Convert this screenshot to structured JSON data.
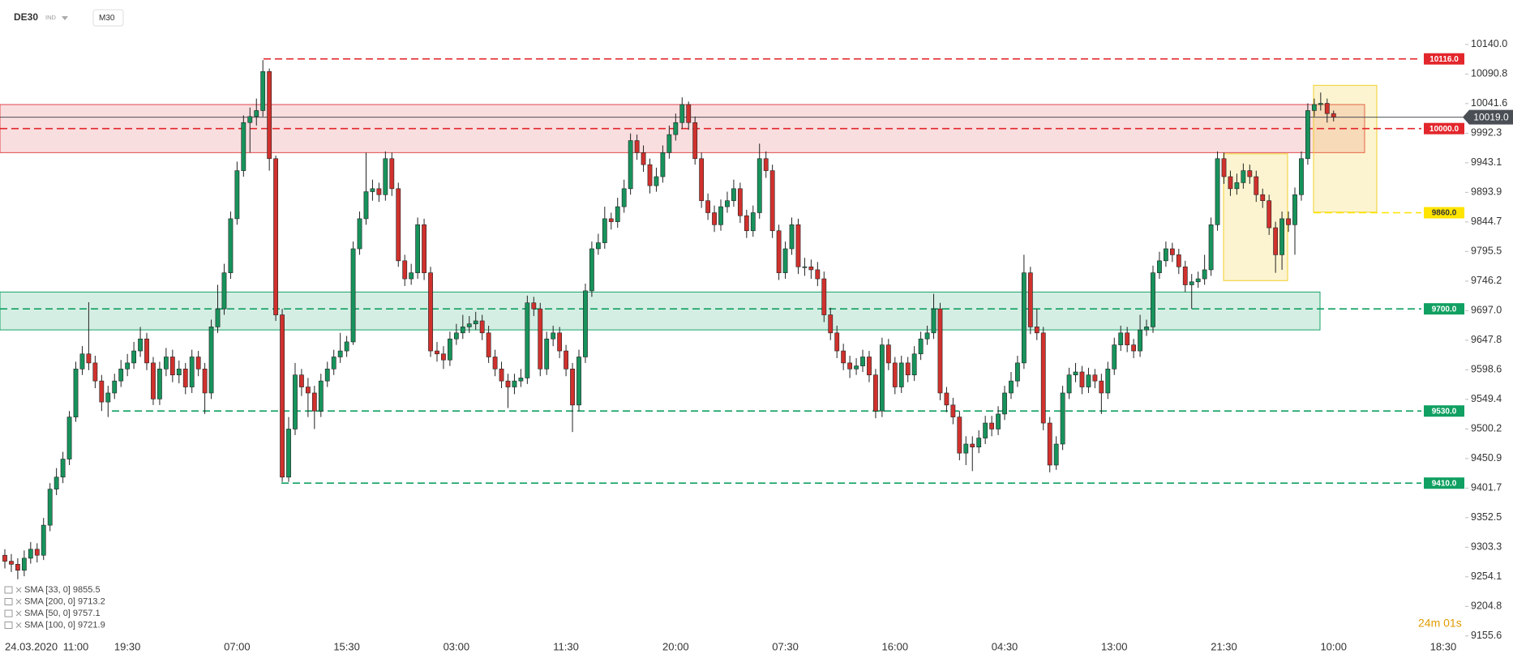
{
  "header": {
    "symbol": "DE30",
    "instrument_type": "IND",
    "timeframe": "M30",
    "countdown": "24m 01s",
    "indicators": [
      "SMA [33, 0] 9855.5",
      "SMA [200, 0] 9713.2",
      "SMA [50, 0] 9757.1",
      "SMA [100, 0] 9721.9"
    ]
  },
  "chart_data": {
    "type": "candlestick",
    "up_color": "#17935c",
    "down_color": "#d0312d",
    "x_date_label": "24.03.2020",
    "categories": [
      null,
      null,
      null,
      null,
      null,
      null,
      null,
      null,
      null,
      null,
      null,
      "11:00",
      null,
      null,
      null,
      null,
      null,
      null,
      null,
      "19:30",
      null,
      null,
      null,
      null,
      null,
      null,
      null,
      null,
      null,
      null,
      null,
      null,
      null,
      null,
      null,
      null,
      "07:00",
      null,
      null,
      null,
      null,
      null,
      null,
      null,
      null,
      null,
      null,
      null,
      null,
      null,
      null,
      null,
      null,
      "15:30",
      null,
      null,
      null,
      null,
      null,
      null,
      null,
      null,
      null,
      null,
      null,
      null,
      null,
      null,
      null,
      null,
      "03:00",
      null,
      null,
      null,
      null,
      null,
      null,
      null,
      null,
      null,
      null,
      null,
      null,
      null,
      null,
      null,
      null,
      "11:30",
      null,
      null,
      null,
      null,
      null,
      null,
      null,
      null,
      null,
      null,
      null,
      null,
      null,
      null,
      null,
      null,
      "20:00",
      null,
      null,
      null,
      null,
      null,
      null,
      null,
      null,
      null,
      null,
      null,
      null,
      null,
      null,
      null,
      null,
      "07:30",
      null,
      null,
      null,
      null,
      null,
      null,
      null,
      null,
      null,
      null,
      null,
      null,
      null,
      null,
      null,
      null,
      "16:00",
      null,
      null,
      null,
      null,
      null,
      null,
      null,
      null,
      null,
      null,
      null,
      null,
      null,
      null,
      null,
      null,
      "04:30",
      null,
      null,
      null,
      null,
      null,
      null,
      null,
      null,
      null,
      null,
      null,
      null,
      null,
      null,
      null,
      null,
      "13:00",
      null,
      null,
      null,
      null,
      null,
      null,
      null,
      null,
      null,
      null,
      null,
      null,
      null,
      null,
      null,
      null,
      "21:30",
      null,
      null,
      null,
      null,
      null,
      null,
      null,
      null,
      null,
      null,
      null,
      null,
      null,
      null,
      null,
      null,
      "10:00",
      null,
      null,
      null,
      null,
      null,
      null,
      null,
      null,
      null,
      null,
      null,
      null,
      null,
      null,
      null,
      null,
      "18:30"
    ],
    "open": [
      9290,
      9280,
      9275,
      9265,
      9285,
      9300,
      9290,
      9340,
      9400,
      9420,
      9450,
      9520,
      9600,
      9625,
      9610,
      9580,
      9545,
      9560,
      9580,
      9600,
      9610,
      9630,
      9650,
      9610,
      9550,
      9600,
      9620,
      9590,
      9600,
      9570,
      9620,
      9600,
      9560,
      9670,
      9700,
      9760,
      9850,
      9930,
      10010,
      10020,
      10030,
      10095,
      9950,
      9690,
      9420,
      9500,
      9590,
      9570,
      9560,
      9530,
      9580,
      9600,
      9620,
      9630,
      9645,
      9800,
      9850,
      9895,
      9900,
      9890,
      9950,
      9900,
      9780,
      9750,
      9760,
      9840,
      9760,
      9630,
      9625,
      9615,
      9650,
      9660,
      9670,
      9675,
      9680,
      9660,
      9620,
      9600,
      9580,
      9570,
      9580,
      9585,
      9710,
      9700,
      9600,
      9650,
      9660,
      9630,
      9600,
      9540,
      9620,
      9730,
      9800,
      9810,
      9850,
      9845,
      9870,
      9900,
      9980,
      9960,
      9940,
      9905,
      9920,
      9960,
      9990,
      10010,
      10040,
      10010,
      9950,
      9880,
      9860,
      9840,
      9870,
      9880,
      9900,
      9855,
      9830,
      9860,
      9950,
      9930,
      9830,
      9760,
      9800,
      9840,
      9770,
      9770,
      9765,
      9750,
      9690,
      9660,
      9630,
      9610,
      9600,
      9605,
      9620,
      9590,
      9530,
      9640,
      9610,
      9570,
      9610,
      9590,
      9625,
      9650,
      9660,
      9700,
      9560,
      9540,
      9520,
      9460,
      9475,
      9470,
      9485,
      9510,
      9500,
      9525,
      9560,
      9580,
      9610,
      9760,
      9670,
      9660,
      9510,
      9440,
      9475,
      9560,
      9590,
      9595,
      9570,
      9590,
      9580,
      9560,
      9600,
      9640,
      9660,
      9640,
      9630,
      9665,
      9670,
      9760,
      9780,
      9800,
      9790,
      9770,
      9740,
      9745,
      9750,
      9765,
      9840,
      9950,
      9920,
      9900,
      9910,
      9930,
      9920,
      9890,
      9880,
      9835,
      9790,
      9850,
      9840,
      9890,
      9950,
      10030,
      10040,
      10042,
      10025,
      null,
      null,
      null,
      null,
      null,
      null,
      null,
      null,
      null,
      null,
      null,
      null,
      null,
      null,
      null,
      null,
      null
    ],
    "high": [
      9300,
      9292,
      9285,
      9298,
      9312,
      9310,
      9352,
      9410,
      9435,
      9462,
      9530,
      9612,
      9638,
      9711,
      9622,
      9590,
      9572,
      9592,
      9615,
      9625,
      9645,
      9670,
      9660,
      9620,
      9612,
      9635,
      9632,
      9614,
      9610,
      9632,
      9630,
      9610,
      9682,
      9740,
      9775,
      9862,
      9945,
      10022,
      10035,
      10050,
      10114,
      10100,
      9955,
      9700,
      9520,
      9610,
      9600,
      9585,
      9572,
      9592,
      9612,
      9632,
      9660,
      9655,
      9812,
      9862,
      9960,
      9915,
      9910,
      9962,
      9960,
      9910,
      9790,
      9775,
      9852,
      9850,
      9770,
      9645,
      9638,
      9662,
      9675,
      9690,
      9688,
      9695,
      9690,
      9672,
      9632,
      9612,
      9592,
      9592,
      9600,
      9722,
      9720,
      9710,
      9662,
      9672,
      9670,
      9640,
      9610,
      9632,
      9742,
      9812,
      9825,
      9870,
      9860,
      9885,
      9915,
      9992,
      9990,
      9972,
      9950,
      9935,
      9972,
      10005,
      10025,
      10052,
      10045,
      10020,
      9960,
      9892,
      9872,
      9882,
      9895,
      9915,
      9910,
      9865,
      9872,
      9975,
      9962,
      9940,
      9840,
      9812,
      9852,
      9850,
      9785,
      9782,
      9778,
      9762,
      9702,
      9672,
      9642,
      9622,
      9618,
      9632,
      9630,
      9600,
      9652,
      9650,
      9620,
      9622,
      9620,
      9638,
      9662,
      9672,
      9725,
      9710,
      9570,
      9552,
      9530,
      9488,
      9488,
      9498,
      9522,
      9522,
      9538,
      9572,
      9595,
      9622,
      9790,
      9770,
      9700,
      9670,
      9520,
      9488,
      9572,
      9602,
      9610,
      9605,
      9602,
      9600,
      9592,
      9612,
      9652,
      9672,
      9670,
      9650,
      9690,
      9682,
      9772,
      9795,
      9812,
      9810,
      9800,
      9780,
      9758,
      9762,
      9790,
      9852,
      9962,
      9960,
      9930,
      9925,
      9942,
      9940,
      9930,
      9900,
      9890,
      9845,
      9862,
      9862,
      9902,
      9962,
      10042,
      10050,
      10060,
      10050,
      10030,
      null,
      null,
      null,
      null,
      null,
      null,
      null,
      null,
      null,
      null,
      null,
      null,
      null,
      null,
      null,
      null,
      null
    ],
    "low": [
      9268,
      9262,
      9250,
      9255,
      9276,
      9278,
      9282,
      9330,
      9390,
      9410,
      9440,
      9512,
      9590,
      9598,
      9568,
      9530,
      9520,
      9550,
      9570,
      9588,
      9600,
      9620,
      9598,
      9540,
      9540,
      9588,
      9578,
      9576,
      9558,
      9560,
      9588,
      9525,
      9550,
      9660,
      9690,
      9750,
      9840,
      9920,
      9960,
      10005,
      10020,
      9930,
      9680,
      9412,
      9412,
      9490,
      9555,
      9520,
      9500,
      9520,
      9570,
      9590,
      9610,
      9620,
      9640,
      9790,
      9840,
      9880,
      9878,
      9880,
      9888,
      9770,
      9738,
      9740,
      9750,
      9748,
      9620,
      9612,
      9600,
      9605,
      9640,
      9650,
      9660,
      9665,
      9648,
      9610,
      9588,
      9568,
      9535,
      9558,
      9570,
      9575,
      9688,
      9588,
      9590,
      9638,
      9618,
      9588,
      9495,
      9530,
      9610,
      9720,
      9790,
      9800,
      9832,
      9835,
      9860,
      9890,
      9948,
      9928,
      9892,
      9895,
      9910,
      9950,
      9980,
      10000,
      9998,
      9940,
      9868,
      9848,
      9828,
      9830,
      9860,
      9870,
      9843,
      9818,
      9820,
      9850,
      9918,
      9818,
      9748,
      9750,
      9790,
      9758,
      9755,
      9750,
      9738,
      9678,
      9648,
      9618,
      9598,
      9585,
      9590,
      9595,
      9578,
      9518,
      9520,
      9598,
      9558,
      9560,
      9578,
      9580,
      9615,
      9640,
      9650,
      9548,
      9528,
      9508,
      9448,
      9440,
      9430,
      9460,
      9475,
      9488,
      9490,
      9515,
      9550,
      9570,
      9600,
      9658,
      9648,
      9498,
      9428,
      9432,
      9465,
      9550,
      9578,
      9558,
      9560,
      9568,
      9525,
      9550,
      9590,
      9630,
      9628,
      9618,
      9620,
      9655,
      9660,
      9750,
      9770,
      9778,
      9758,
      9728,
      9700,
      9735,
      9740,
      9755,
      9830,
      9908,
      9888,
      9890,
      9900,
      9908,
      9878,
      9868,
      9823,
      9760,
      9765,
      9828,
      9790,
      9880,
      9940,
      10020,
      10030,
      10010,
      10012,
      null,
      null,
      null,
      null,
      null,
      null,
      null,
      null,
      null,
      null,
      null,
      null,
      null,
      null,
      null,
      null,
      null
    ],
    "close": [
      9280,
      9275,
      9265,
      9285,
      9300,
      9290,
      9340,
      9400,
      9420,
      9450,
      9520,
      9600,
      9625,
      9610,
      9580,
      9545,
      9560,
      9580,
      9600,
      9610,
      9630,
      9650,
      9610,
      9550,
      9600,
      9620,
      9590,
      9600,
      9570,
      9620,
      9600,
      9560,
      9670,
      9700,
      9760,
      9850,
      9930,
      10010,
      10020,
      10030,
      10095,
      9950,
      9690,
      9420,
      9500,
      9590,
      9570,
      9560,
      9530,
      9580,
      9600,
      9620,
      9630,
      9645,
      9800,
      9850,
      9895,
      9900,
      9890,
      9950,
      9900,
      9780,
      9750,
      9760,
      9840,
      9760,
      9630,
      9625,
      9615,
      9650,
      9660,
      9670,
      9675,
      9680,
      9660,
      9620,
      9600,
      9580,
      9570,
      9580,
      9585,
      9710,
      9700,
      9600,
      9650,
      9660,
      9630,
      9600,
      9540,
      9620,
      9730,
      9800,
      9810,
      9850,
      9845,
      9870,
      9900,
      9980,
      9960,
      9940,
      9905,
      9920,
      9960,
      9990,
      10010,
      10040,
      10010,
      9950,
      9880,
      9860,
      9840,
      9870,
      9880,
      9900,
      9855,
      9830,
      9860,
      9950,
      9930,
      9830,
      9760,
      9800,
      9840,
      9770,
      9770,
      9765,
      9750,
      9690,
      9660,
      9630,
      9610,
      9600,
      9605,
      9620,
      9590,
      9530,
      9640,
      9610,
      9570,
      9610,
      9590,
      9625,
      9650,
      9660,
      9700,
      9560,
      9540,
      9520,
      9460,
      9475,
      9470,
      9485,
      9510,
      9500,
      9525,
      9560,
      9580,
      9610,
      9760,
      9670,
      9660,
      9510,
      9440,
      9475,
      9560,
      9590,
      9595,
      9570,
      9590,
      9580,
      9560,
      9600,
      9640,
      9660,
      9640,
      9630,
      9665,
      9670,
      9760,
      9780,
      9800,
      9790,
      9770,
      9740,
      9745,
      9750,
      9765,
      9840,
      9950,
      9920,
      9900,
      9910,
      9930,
      9920,
      9890,
      9880,
      9835,
      9790,
      9850,
      9840,
      9890,
      9950,
      10030,
      10040,
      10042,
      10025,
      10019,
      null,
      null,
      null,
      null,
      null,
      null,
      null,
      null,
      null,
      null,
      null,
      null,
      null,
      null,
      null,
      null,
      null
    ],
    "ylim": [
      9150,
      10214
    ],
    "yticks": [
      {
        "value": 10140.0,
        "label": "10140.0"
      },
      {
        "value": 10090.8,
        "label": "10090.8"
      },
      {
        "value": 10041.6,
        "label": "10041.6"
      },
      {
        "value": 9992.3,
        "label": "9992.3"
      },
      {
        "value": 9943.1,
        "label": "9943.1"
      },
      {
        "value": 9893.9,
        "label": "9893.9"
      },
      {
        "value": 9844.7,
        "label": "9844.7"
      },
      {
        "value": 9795.5,
        "label": "9795.5"
      },
      {
        "value": 9746.2,
        "label": "9746.2"
      },
      {
        "value": 9697.0,
        "label": "9697.0"
      },
      {
        "value": 9647.8,
        "label": "9647.8"
      },
      {
        "value": 9598.6,
        "label": "9598.6"
      },
      {
        "value": 9549.4,
        "label": "9549.4"
      },
      {
        "value": 9500.2,
        "label": "9500.2"
      },
      {
        "value": 9450.9,
        "label": "9450.9"
      },
      {
        "value": 9401.7,
        "label": "9401.7"
      },
      {
        "value": 9352.5,
        "label": "9352.5"
      },
      {
        "value": 9303.3,
        "label": "9303.3"
      },
      {
        "value": 9254.1,
        "label": "9254.1"
      },
      {
        "value": 9204.8,
        "label": "9204.8"
      },
      {
        "value": 9155.6,
        "label": "9155.6"
      }
    ],
    "last_price": {
      "value": 10019.0,
      "label": "10019.0",
      "color": "#4a4f55"
    },
    "levels": [
      {
        "value": 10116.0,
        "label": "10116.0",
        "color": "#e2262b"
      },
      {
        "value": 10000.0,
        "label": "10000.0",
        "color": "#e2262b"
      },
      {
        "value": 9860.0,
        "label": "9860.0",
        "color": "#ffe400"
      },
      {
        "value": 9700.0,
        "label": "9700.0",
        "color": "#10a061"
      },
      {
        "value": 9530.0,
        "label": "9530.0",
        "color": "#10a061"
      },
      {
        "value": 9410.0,
        "label": "9410.0",
        "color": "#10a061"
      }
    ],
    "zones": [
      {
        "top": 10040,
        "bottom": 9960,
        "color": "#e0484c"
      },
      {
        "top": 9728,
        "bottom": 9665,
        "color": "#18a368"
      },
      {
        "top": 9958,
        "bottom": 9747,
        "color": "#f0cf2a"
      },
      {
        "top": 10072,
        "bottom": 9861,
        "color": "#f0cf2a"
      }
    ]
  }
}
